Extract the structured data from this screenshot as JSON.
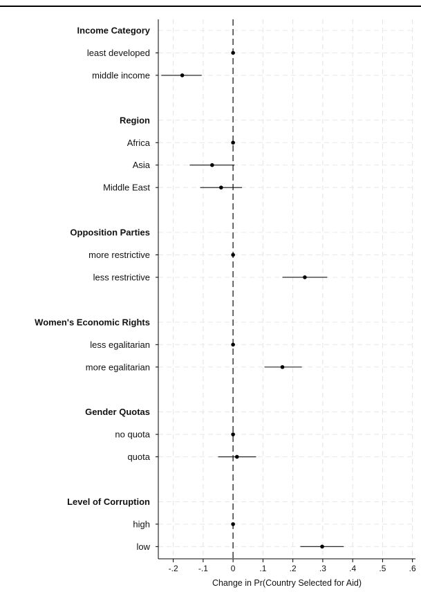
{
  "chart_data": {
    "type": "scatter",
    "subtype": "coefficient-plot",
    "title": "",
    "xlabel": "Change in Pr(Country Selected for Aid)",
    "ylabel": "",
    "xlim": [
      -0.25,
      0.61
    ],
    "xticks": [
      -0.2,
      -0.1,
      0,
      0.1,
      0.2,
      0.3,
      0.4,
      0.5,
      0.6
    ],
    "xtick_labels": [
      "-.2",
      "-.1",
      "0",
      ".1",
      ".2",
      ".3",
      ".4",
      ".5",
      ".6"
    ],
    "grid": true,
    "reference_line": 0,
    "groups": [
      {
        "header": "Income Category",
        "rows": [
          {
            "label": "least developed",
            "estimate": 0.0,
            "ci": [
              0.0,
              0.0
            ]
          },
          {
            "label": "middle income",
            "estimate": -0.17,
            "ci": [
              -0.24,
              -0.105
            ]
          }
        ]
      },
      {
        "header": "Region",
        "rows": [
          {
            "label": "Africa",
            "estimate": 0.0,
            "ci": [
              0.0,
              0.0
            ]
          },
          {
            "label": "Asia",
            "estimate": -0.07,
            "ci": [
              -0.145,
              0.005
            ]
          },
          {
            "label": "Middle East",
            "estimate": -0.04,
            "ci": [
              -0.11,
              0.03
            ]
          }
        ]
      },
      {
        "header": "Opposition Parties",
        "rows": [
          {
            "label": "more restrictive",
            "estimate": 0.0,
            "ci": [
              0.0,
              0.0
            ]
          },
          {
            "label": "less restrictive",
            "estimate": 0.24,
            "ci": [
              0.165,
              0.315
            ]
          }
        ]
      },
      {
        "header": "Women's Economic Rights",
        "rows": [
          {
            "label": "less egalitarian",
            "estimate": 0.0,
            "ci": [
              0.0,
              0.0
            ]
          },
          {
            "label": "more egalitarian",
            "estimate": 0.165,
            "ci": [
              0.105,
              0.23
            ]
          }
        ]
      },
      {
        "header": "Gender Quotas",
        "rows": [
          {
            "label": "no quota",
            "estimate": 0.0,
            "ci": [
              0.0,
              0.0
            ]
          },
          {
            "label": "quota",
            "estimate": 0.013,
            "ci": [
              -0.05,
              0.077
            ]
          }
        ]
      },
      {
        "header": "Level of Corruption",
        "rows": [
          {
            "label": "high",
            "estimate": 0.0,
            "ci": [
              0.0,
              0.0
            ]
          },
          {
            "label": "low",
            "estimate": 0.298,
            "ci": [
              0.225,
              0.37
            ]
          }
        ]
      }
    ]
  }
}
